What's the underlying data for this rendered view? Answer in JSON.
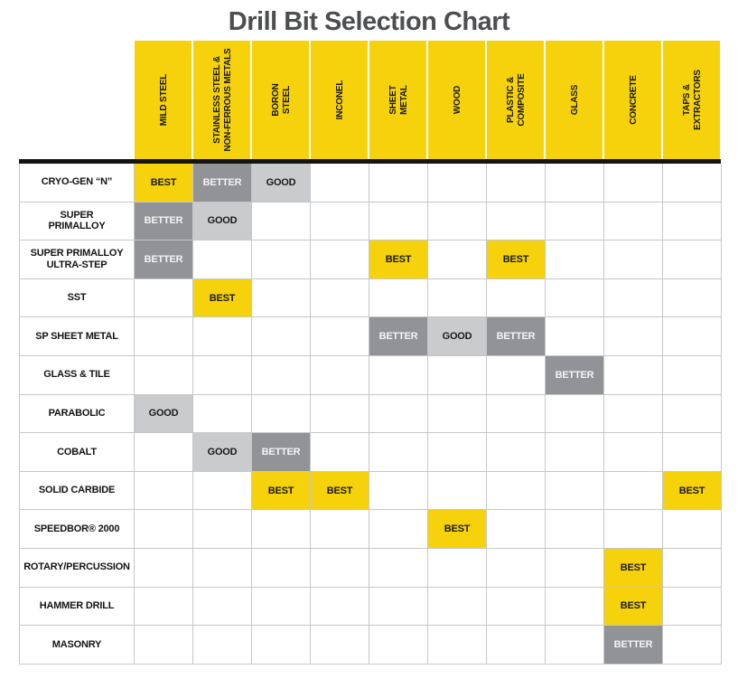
{
  "title": "Drill Bit Selection Chart",
  "colors": {
    "header_bg": "#f5d20c",
    "title_color": "#4d4e50",
    "separator": "#141414",
    "grid_line": "#c6c7c9"
  },
  "chart_data": {
    "type": "table",
    "title": "Drill Bit Selection Chart",
    "rating_scale": [
      "BEST",
      "BETTER",
      "GOOD"
    ],
    "rating_styles": {
      "BEST": {
        "bg": "#f5d20c",
        "text": "#1a1a1a"
      },
      "BETTER": {
        "bg": "#919396",
        "text": "#f4f4f4"
      },
      "GOOD": {
        "bg": "#c9cbcd",
        "text": "#1a1a1a"
      }
    },
    "columns": [
      "MILD STEEL",
      "STAINLESS STEEL &\nNON-FERROUS METALS",
      "BORON\nSTEEL",
      "INCONEL",
      "SHEET\nMETAL",
      "WOOD",
      "PLASTIC &\nCOMPOSITE",
      "GLASS",
      "CONCRETE",
      "TAPS &\nEXTRACTORS"
    ],
    "rows": [
      {
        "label": "CRYO-GEN “N”",
        "cells": [
          "BEST",
          "BETTER",
          "GOOD",
          "",
          "",
          "",
          "",
          "",
          "",
          ""
        ]
      },
      {
        "label": "SUPER\nPRIMALLOY",
        "cells": [
          "BETTER",
          "GOOD",
          "",
          "",
          "",
          "",
          "",
          "",
          "",
          ""
        ]
      },
      {
        "label": "SUPER PRIMALLOY\nULTRA-STEP",
        "cells": [
          "BETTER",
          "",
          "",
          "",
          "BEST",
          "",
          "BEST",
          "",
          "",
          ""
        ]
      },
      {
        "label": "SST",
        "cells": [
          "",
          "BEST",
          "",
          "",
          "",
          "",
          "",
          "",
          "",
          ""
        ]
      },
      {
        "label": "SP SHEET METAL",
        "cells": [
          "",
          "",
          "",
          "",
          "BETTER",
          "GOOD",
          "BETTER",
          "",
          "",
          ""
        ]
      },
      {
        "label": "GLASS & TILE",
        "cells": [
          "",
          "",
          "",
          "",
          "",
          "",
          "",
          "BETTER",
          "",
          ""
        ]
      },
      {
        "label": "PARABOLIC",
        "cells": [
          "GOOD",
          "",
          "",
          "",
          "",
          "",
          "",
          "",
          "",
          ""
        ]
      },
      {
        "label": "COBALT",
        "cells": [
          "",
          "GOOD",
          "BETTER",
          "",
          "",
          "",
          "",
          "",
          "",
          ""
        ]
      },
      {
        "label": "SOLID CARBIDE",
        "cells": [
          "",
          "",
          "BEST",
          "BEST",
          "",
          "",
          "",
          "",
          "",
          "BEST"
        ]
      },
      {
        "label": "SPEEDBOR® 2000",
        "cells": [
          "",
          "",
          "",
          "",
          "",
          "BEST",
          "",
          "",
          "",
          ""
        ]
      },
      {
        "label": "ROTARY/PERCUSSION",
        "cells": [
          "",
          "",
          "",
          "",
          "",
          "",
          "",
          "",
          "BEST",
          ""
        ]
      },
      {
        "label": "HAMMER DRILL",
        "cells": [
          "",
          "",
          "",
          "",
          "",
          "",
          "",
          "",
          "BEST",
          ""
        ]
      },
      {
        "label": "MASONRY",
        "cells": [
          "",
          "",
          "",
          "",
          "",
          "",
          "",
          "",
          "BETTER",
          ""
        ]
      }
    ]
  }
}
